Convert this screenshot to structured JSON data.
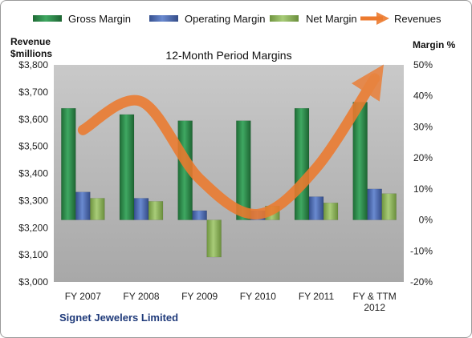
{
  "chart_data": {
    "type": "bar",
    "title": "12-Month Period Margins",
    "company": "Signet Jewelers Limited",
    "left_axis": {
      "title_line1": "Revenue",
      "title_line2": "$millions",
      "range": [
        3000,
        3800
      ],
      "ticks": [
        "$3,000",
        "$3,100",
        "$3,200",
        "$3,300",
        "$3,400",
        "$3,500",
        "$3,600",
        "$3,700",
        "$3,800"
      ]
    },
    "right_axis": {
      "title": "Margin  %",
      "range": [
        -20,
        50
      ],
      "ticks": [
        "-20%",
        "-10%",
        "0%",
        "10%",
        "20%",
        "30%",
        "40%",
        "50%"
      ]
    },
    "categories": [
      [
        "FY 2007"
      ],
      [
        "FY 2008"
      ],
      [
        "FY 2009"
      ],
      [
        "FY 2010"
      ],
      [
        "FY 2011"
      ],
      [
        "FY & TTM",
        "2012"
      ]
    ],
    "series": [
      {
        "name": "Gross Margin",
        "axis": "right",
        "color": "#2e8b4a",
        "values": [
          36,
          34,
          32,
          32,
          36,
          38
        ]
      },
      {
        "name": "Operating Margin",
        "axis": "right",
        "color": "#4f6fb5",
        "values": [
          9,
          7,
          3,
          3,
          7.5,
          10
        ]
      },
      {
        "name": "Net Margin",
        "axis": "right",
        "color": "#8db45c",
        "values": [
          7,
          6,
          -12,
          4.5,
          5.5,
          8.5
        ]
      }
    ],
    "revenues": {
      "name": "Revenues",
      "axis": "left",
      "color": "#ec7a2e",
      "values": [
        3560,
        3665,
        3380,
        3250,
        3420,
        3750
      ]
    },
    "legend_position": "top",
    "grid": false,
    "plot_background": "#b5b5b5"
  }
}
